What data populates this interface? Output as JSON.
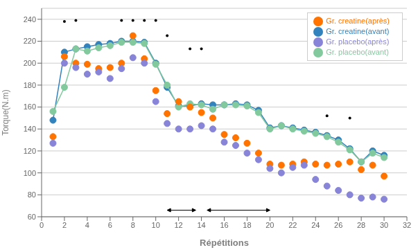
{
  "chart_data": {
    "type": "line",
    "xlabel": "Répétitions",
    "ylabel": "Torque(N.m)",
    "xlim": [
      0,
      32
    ],
    "ylim": [
      60,
      250
    ],
    "xticks": [
      0,
      2,
      4,
      6,
      8,
      10,
      12,
      14,
      16,
      18,
      20,
      22,
      24,
      26,
      28,
      30,
      32
    ],
    "yticks": [
      60,
      80,
      100,
      120,
      140,
      160,
      180,
      200,
      220,
      240
    ],
    "grid": true,
    "legend": "upper right",
    "series": [
      {
        "name": "Gr. creatine(avant)",
        "color": "#3182bd",
        "marker": "circle",
        "line_style": "solid",
        "x": [
          1,
          2,
          3,
          4,
          5,
          6,
          7,
          8,
          9,
          10,
          11,
          12,
          13,
          14,
          15,
          16,
          17,
          18,
          19,
          20,
          21,
          22,
          23,
          24,
          25,
          26,
          27,
          28,
          29,
          30
        ],
        "values": [
          148,
          210,
          213,
          215,
          217,
          218,
          220,
          220,
          219,
          200,
          178,
          161,
          161,
          163,
          162,
          162,
          163,
          162,
          157,
          141,
          143,
          141,
          139,
          137,
          134,
          130,
          122,
          110,
          120,
          116
        ]
      },
      {
        "name": "Gr. placebo(avant)",
        "color": "#82ca9d",
        "marker": "circle",
        "line_style": "solid",
        "x": [
          1,
          2,
          3,
          4,
          5,
          6,
          7,
          8,
          9,
          10,
          11,
          12,
          13,
          14,
          15,
          16,
          17,
          18,
          19,
          20,
          21,
          22,
          23,
          24,
          25,
          26,
          27,
          28,
          29,
          30
        ],
        "values": [
          156,
          178,
          213,
          211,
          214,
          216,
          219,
          219,
          218,
          199,
          180,
          160,
          163,
          162,
          158,
          162,
          162,
          161,
          155,
          140,
          143,
          140,
          138,
          136,
          133,
          128,
          121,
          110,
          118,
          114
        ]
      },
      {
        "name": "Gr. creatine(après)",
        "color": "#ff7300",
        "marker": "circle",
        "line_style": "none",
        "x": [
          1,
          2,
          3,
          4,
          5,
          6,
          7,
          8,
          9,
          10,
          11,
          12,
          13,
          14,
          15,
          16,
          17,
          18,
          19,
          20,
          21,
          22,
          23,
          24,
          25,
          26,
          27,
          28,
          29,
          30
        ],
        "values": [
          133,
          206,
          200,
          199,
          195,
          196,
          200,
          225,
          204,
          175,
          154,
          165,
          160,
          155,
          150,
          135,
          132,
          127,
          118,
          108,
          107,
          108,
          110,
          108,
          107,
          108,
          110,
          103,
          107,
          97
        ]
      },
      {
        "name": "Gr. placebo(après)",
        "color": "#8884d8",
        "marker": "circle",
        "line_style": "none",
        "x": [
          1,
          2,
          3,
          4,
          5,
          6,
          7,
          8,
          9,
          10,
          11,
          12,
          13,
          14,
          15,
          16,
          17,
          18,
          19,
          20,
          21,
          22,
          23,
          24,
          25,
          26,
          27,
          28,
          29,
          30
        ],
        "values": [
          127,
          200,
          196,
          190,
          192,
          186,
          195,
          205,
          200,
          165,
          145,
          140,
          140,
          143,
          140,
          128,
          125,
          118,
          112,
          104,
          100,
          105,
          107,
          94,
          88,
          84,
          80,
          77,
          78,
          76
        ]
      }
    ],
    "significance_marks": {
      "color": "#000000",
      "x": [
        7,
        8,
        9,
        10,
        3,
        2,
        11,
        13,
        14,
        25,
        27
      ],
      "y": [
        239,
        239,
        239,
        239,
        239,
        238,
        225,
        213,
        213,
        152,
        150
      ]
    },
    "brackets": {
      "color": "#000000",
      "items": [
        {
          "x": [
            11,
            13.5
          ],
          "y": 66
        },
        {
          "x": [
            14.5,
            20
          ],
          "y": 66
        }
      ]
    }
  }
}
